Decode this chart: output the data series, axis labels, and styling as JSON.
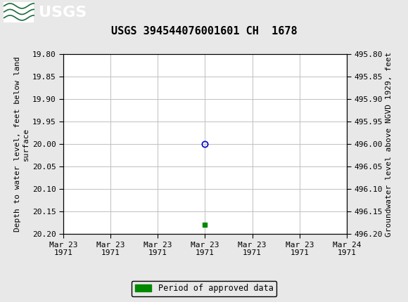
{
  "title": "USGS 394544076001601 CH  1678",
  "header_bg_color": "#1a6b3c",
  "plot_bg_color": "#ffffff",
  "fig_bg_color": "#e8e8e8",
  "grid_color": "#c0c0c0",
  "ylabel_left": "Depth to water level, feet below land\nsurface",
  "ylabel_right": "Groundwater level above NGVD 1929, feet",
  "ylim_left": [
    19.8,
    20.2
  ],
  "ylim_right": [
    495.8,
    496.2
  ],
  "yticks_left": [
    19.8,
    19.85,
    19.9,
    19.95,
    20.0,
    20.05,
    20.1,
    20.15,
    20.2
  ],
  "ytick_labels_left": [
    "19.80",
    "19.85",
    "19.90",
    "19.95",
    "20.00",
    "20.05",
    "20.10",
    "20.15",
    "20.20"
  ],
  "yticks_right": [
    495.8,
    495.85,
    495.9,
    495.95,
    496.0,
    496.05,
    496.1,
    496.15,
    496.2
  ],
  "ytick_labels_right": [
    "495.80",
    "495.85",
    "495.90",
    "495.95",
    "496.00",
    "496.05",
    "496.10",
    "496.15",
    "496.20"
  ],
  "xtick_labels": [
    "Mar 23\n1971",
    "Mar 23\n1971",
    "Mar 23\n1971",
    "Mar 23\n1971",
    "Mar 23\n1971",
    "Mar 23\n1971",
    "Mar 24\n1971"
  ],
  "data_point_x": 3.0,
  "data_point_y": 20.0,
  "data_point_color": "#0000cc",
  "green_marker_x": 3.0,
  "green_marker_y": 20.18,
  "green_color": "#008800",
  "legend_label": "Period of approved data",
  "font_family": "DejaVu Sans Mono",
  "title_fontsize": 11,
  "axis_label_fontsize": 8,
  "tick_fontsize": 8,
  "legend_fontsize": 8.5,
  "xlim": [
    0,
    6
  ]
}
